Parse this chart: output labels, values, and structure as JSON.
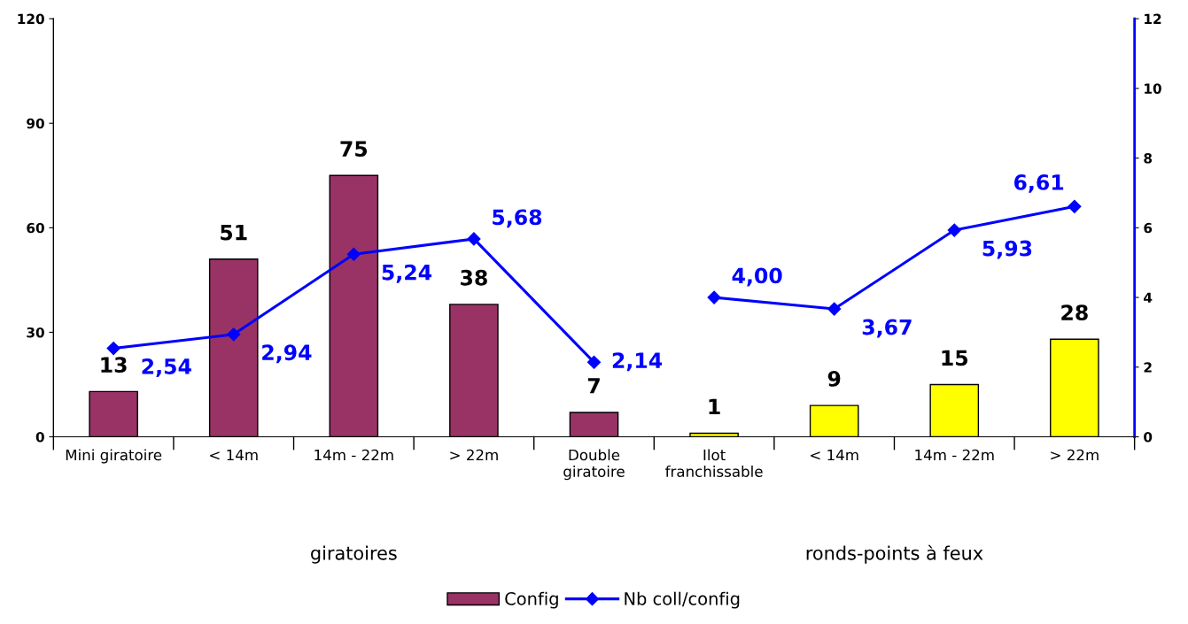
{
  "chart_data": {
    "type": "bar",
    "categories": [
      "Mini giratoire",
      "< 14m",
      "14m - 22m",
      "> 22m",
      "Double\ngiratoire",
      "Ilot\nfranchissable",
      "< 14m",
      "14m - 22m",
      "> 22m"
    ],
    "series": [
      {
        "name": "Config",
        "colors": [
          "#993366",
          "#993366",
          "#993366",
          "#993366",
          "#993366",
          "#ffff00",
          "#ffff00",
          "#ffff00",
          "#ffff00"
        ],
        "values": [
          13,
          51,
          75,
          38,
          7,
          1,
          9,
          15,
          28
        ],
        "data_labels": true
      },
      {
        "name": "Nb coll/config",
        "type": "line",
        "axis": "y2",
        "color": "#0000ff",
        "marker": "diamond",
        "values": [
          2.54,
          2.94,
          5.24,
          5.68,
          2.14,
          null,
          null,
          null,
          null
        ],
        "value_labels": [
          "2,54",
          "2,94",
          "5,24",
          "5,68",
          "2,14",
          null,
          null,
          null,
          null
        ]
      },
      {
        "type": "line",
        "axis": "y2",
        "color": "#0000ff",
        "marker": "diamond",
        "values": [
          null,
          null,
          null,
          null,
          null,
          4.0,
          3.67,
          5.93,
          6.61
        ],
        "value_labels": [
          null,
          null,
          null,
          null,
          null,
          "4,00",
          "3,67",
          "5,93",
          "6,61"
        ]
      }
    ],
    "ylim": [
      0,
      120
    ],
    "yticks": [
      0,
      30,
      60,
      90,
      120
    ],
    "y2lim": [
      0,
      12
    ],
    "y2ticks": [
      0,
      2,
      4,
      6,
      8,
      10,
      12
    ],
    "annotations": [
      "giratoires",
      "ronds-points à feux"
    ],
    "grid": false,
    "legend": "bottom"
  }
}
